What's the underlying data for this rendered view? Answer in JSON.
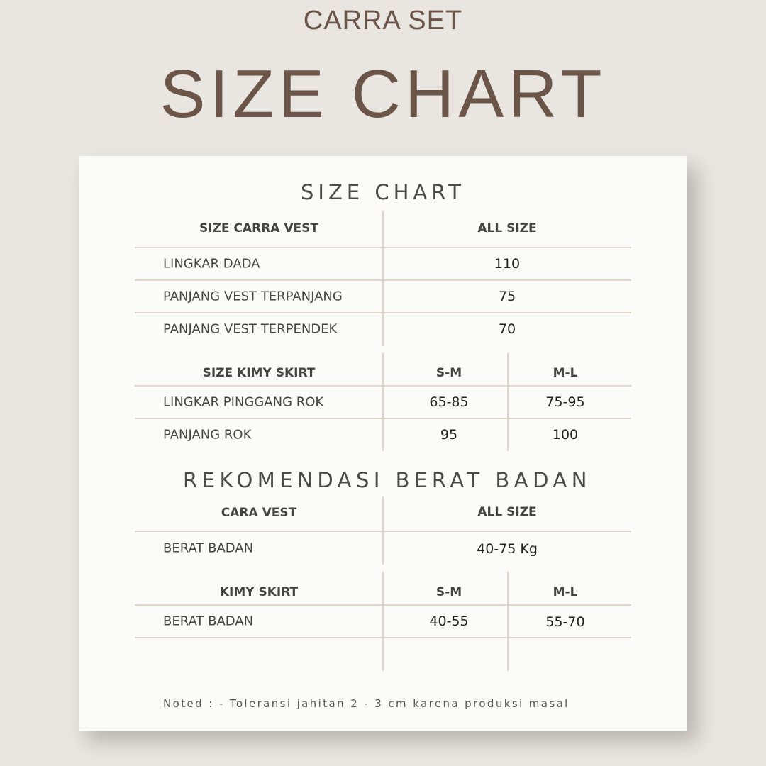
{
  "brand": "CARRA SET",
  "heading": "SIZE CHART",
  "card": {
    "title": "SIZE CHART",
    "vest_table": {
      "headers": [
        "SIZE CARRA VEST",
        "ALL SIZE"
      ],
      "rows": [
        {
          "label": "LINGKAR DADA",
          "value": "110"
        },
        {
          "label": "PANJANG VEST TERPANJANG",
          "value": "75"
        },
        {
          "label": "PANJANG VEST TERPENDEK",
          "value": "70"
        }
      ]
    },
    "skirt_table": {
      "headers": [
        "SIZE KIMY SKIRT",
        "S-M",
        "M-L"
      ],
      "rows": [
        {
          "label": "LINGKAR PINGGANG ROK",
          "sm": "65-85",
          "ml": "75-95"
        },
        {
          "label": "PANJANG ROK",
          "sm": "95",
          "ml": "100"
        }
      ]
    },
    "weight_title": "REKOMENDASI BERAT BADAN",
    "weight_vest": {
      "headers": [
        "CARA VEST",
        "ALL SIZE"
      ],
      "rows": [
        {
          "label": "BERAT BADAN",
          "value": "40-75 Kg"
        }
      ]
    },
    "weight_skirt": {
      "headers": [
        "KIMY SKIRT",
        "S-M",
        "M-L"
      ],
      "rows": [
        {
          "label": "BERAT BADAN",
          "sm": "40-55",
          "ml": "55-70"
        }
      ]
    },
    "note": "Noted :  - Toleransi jahitan 2 - 3 cm karena produksi masal"
  },
  "colors": {
    "brand": "#6b5448",
    "lines": "#e2d6cc",
    "background": "#e9e6e1",
    "card": "#fbfbfa"
  }
}
